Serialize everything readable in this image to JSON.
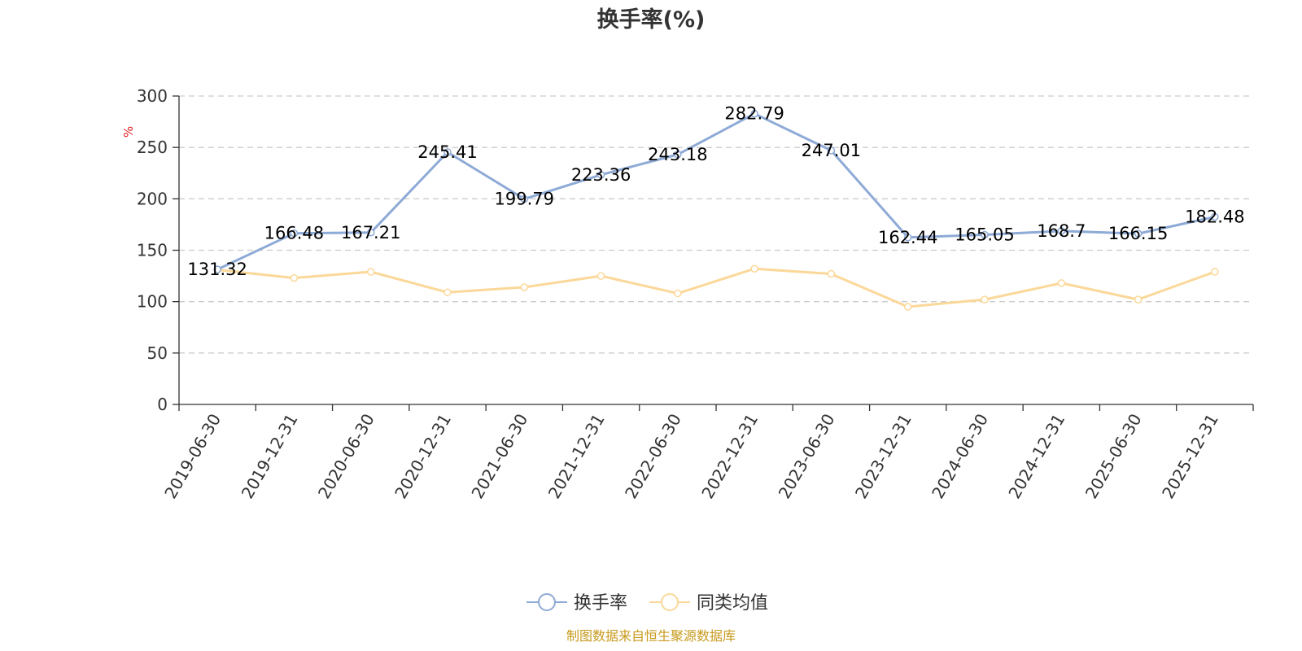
{
  "chart_data": {
    "type": "line",
    "title": "换手率(%)",
    "ylabel": "%",
    "ylim": [
      0,
      300
    ],
    "yticks": [
      0,
      50,
      100,
      150,
      200,
      250,
      300
    ],
    "grid": true,
    "legend_position": "bottom-center",
    "categories": [
      "2019-06-30",
      "2019-12-31",
      "2020-06-30",
      "2020-12-31",
      "2021-06-30",
      "2021-12-31",
      "2022-06-30",
      "2022-12-31",
      "2023-06-30",
      "2023-12-31",
      "2024-06-30",
      "2024-12-31",
      "2025-06-30",
      "2025-12-31"
    ],
    "series": [
      {
        "name": "换手率",
        "color": "#8eaad6",
        "show_labels": true,
        "values": [
          131.32,
          166.48,
          167.21,
          245.41,
          199.79,
          223.36,
          243.18,
          282.79,
          247.01,
          162.44,
          165.05,
          168.7,
          166.15,
          182.48
        ]
      },
      {
        "name": "同类均值",
        "color": "#fbd899",
        "show_labels": false,
        "values": [
          131,
          123,
          129,
          109,
          114,
          125,
          108,
          132,
          127,
          95,
          102,
          118,
          102,
          129
        ]
      }
    ]
  },
  "source": {
    "text": "制图数据来自恒生聚源数据库",
    "color": "#c79a1c"
  },
  "colors": {
    "axis": "#333333",
    "grid": "#cccccc",
    "unit": "#e02020"
  }
}
